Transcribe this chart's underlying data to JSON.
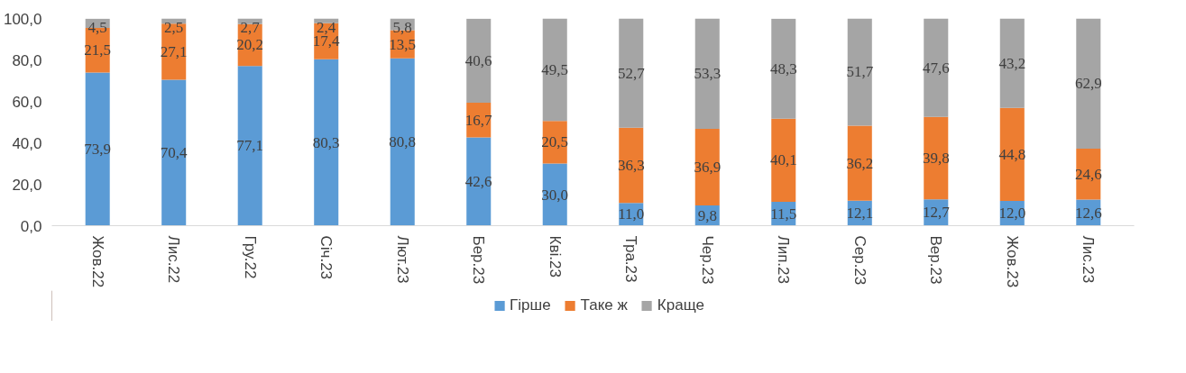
{
  "chart_data": {
    "type": "bar",
    "stacked": true,
    "categories": [
      "Жов.22",
      "Лис.22",
      "Гру.22",
      "Січ.23",
      "Лют.23",
      "Бер.23",
      "Кві.23",
      "Тра.23",
      "Чер.23",
      "Лип.23",
      "Сер.23",
      "Вер.23",
      "Жов.23",
      "Лис.23"
    ],
    "series": [
      {
        "name": "Гірше",
        "color": "#5b9bd5",
        "values": [
          73.9,
          70.4,
          77.1,
          80.3,
          80.8,
          42.6,
          30.0,
          11.0,
          9.8,
          11.5,
          12.1,
          12.7,
          12.0,
          12.6
        ],
        "value_labels": [
          "73,9",
          "70,4",
          "77,1",
          "80,3",
          "80,8",
          "42,6",
          "30,0",
          "11,0",
          "9,8",
          "11,5",
          "12,1",
          "12,7",
          "12,0",
          "12,6"
        ]
      },
      {
        "name": "Таке ж",
        "color": "#ed7d31",
        "values": [
          21.5,
          27.1,
          20.2,
          17.4,
          13.5,
          16.7,
          20.5,
          36.3,
          36.9,
          40.1,
          36.2,
          39.8,
          44.8,
          24.6
        ],
        "value_labels": [
          "21,5",
          "27,1",
          "20,2",
          "17,4",
          "13,5",
          "16,7",
          "20,5",
          "36,3",
          "36,9",
          "40,1",
          "36,2",
          "39,8",
          "44,8",
          "24,6"
        ]
      },
      {
        "name": "Краще",
        "color": "#a5a5a5",
        "values": [
          4.5,
          2.5,
          2.7,
          2.4,
          5.8,
          40.6,
          49.5,
          52.7,
          53.3,
          48.3,
          51.7,
          47.6,
          43.2,
          62.9
        ],
        "value_labels": [
          "4,5",
          "2,5",
          "2,7",
          "2,4",
          "5,8",
          "40,6",
          "49,5",
          "52,7",
          "53,3",
          "48,3",
          "51,7",
          "47,6",
          "43,2",
          "62,9"
        ]
      }
    ],
    "ylim": [
      0,
      100
    ],
    "yticks": [
      {
        "value": 0,
        "label": "0,0"
      },
      {
        "value": 20,
        "label": "20,0"
      },
      {
        "value": 40,
        "label": "40,0"
      },
      {
        "value": 60,
        "label": "60,0"
      },
      {
        "value": 80,
        "label": "80,0"
      },
      {
        "value": 100,
        "label": "100,0"
      }
    ],
    "grid": false,
    "legend": "bottom"
  }
}
